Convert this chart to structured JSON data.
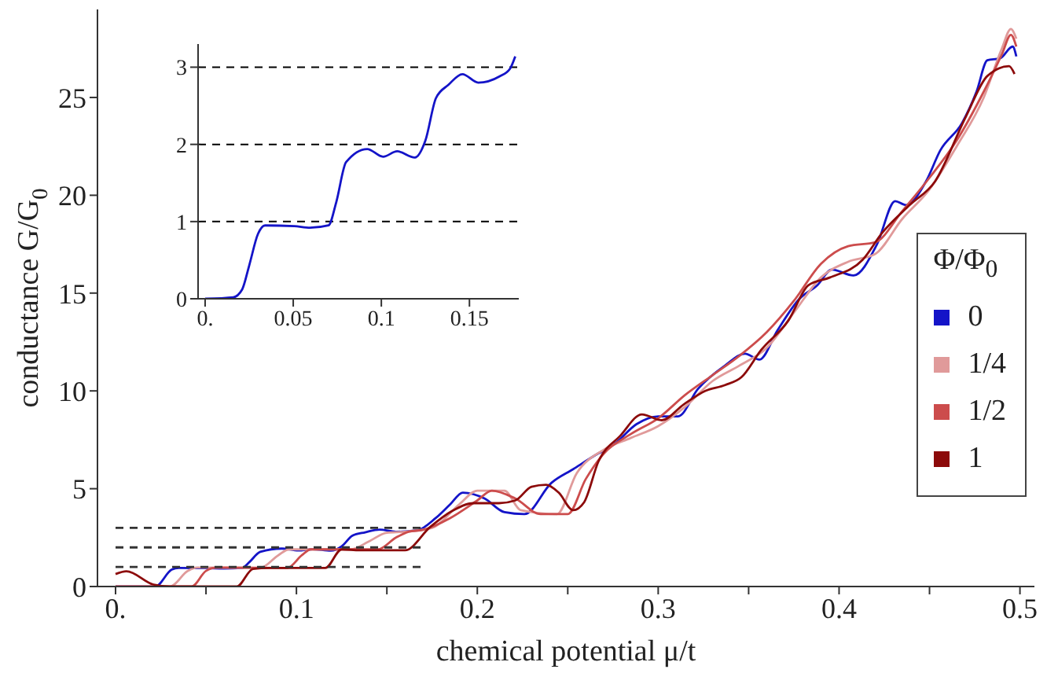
{
  "chart_data": [
    {
      "type": "line",
      "xlabel": "chemical potential  μ/t",
      "ylabel": "conductance  G/G$_{0}$",
      "legend_title": "Φ/Φ$_{0}$",
      "legend": "right",
      "xlim": [
        -0.01,
        0.508
      ],
      "ylim": [
        0,
        29.5
      ],
      "xticks": [
        {
          "value": 0,
          "label": "0."
        },
        {
          "value": 0.05,
          "label": null
        },
        0.1,
        {
          "value": 0.15,
          "label": null
        },
        0.2,
        {
          "value": 0.25,
          "label": null
        },
        0.3,
        {
          "value": 0.35,
          "label": null
        },
        0.4,
        {
          "value": 0.45,
          "label": null
        },
        0.5
      ],
      "yticks": [
        0,
        5,
        10,
        15,
        20,
        25
      ],
      "series": [
        {
          "name": "0",
          "color": "#1414c8",
          "x": [
            0,
            0.022,
            0.031,
            0.035,
            0.05,
            0.06,
            0.07,
            0.074,
            0.08,
            0.092,
            0.101,
            0.109,
            0.119,
            0.125,
            0.131,
            0.138,
            0.146,
            0.155,
            0.167,
            0.177,
            0.185,
            0.192,
            0.204,
            0.215,
            0.226,
            0.241,
            0.253,
            0.265,
            0.276,
            0.288,
            0.3,
            0.311,
            0.322,
            0.337,
            0.348,
            0.356,
            0.366,
            0.378,
            0.388,
            0.396,
            0.408,
            0.421,
            0.431,
            0.437,
            0.448,
            0.456,
            0.468,
            0.476,
            0.482,
            0.489,
            0.496,
            0.498
          ],
          "values": [
            0,
            0,
            0.86,
            0.95,
            0.94,
            0.92,
            0.95,
            1.25,
            1.77,
            1.94,
            1.84,
            1.91,
            1.83,
            2.05,
            2.6,
            2.77,
            2.91,
            2.8,
            2.88,
            3.5,
            4.2,
            4.8,
            4.5,
            3.8,
            3.7,
            5.3,
            6.0,
            6.7,
            7.3,
            8.3,
            8.7,
            8.7,
            10.1,
            11.3,
            11.9,
            11.6,
            13.1,
            14.7,
            15.4,
            16.2,
            15.9,
            17.5,
            19.7,
            19.5,
            20.7,
            22.3,
            23.7,
            25.3,
            26.9,
            27.0,
            27.6,
            27.1
          ]
        },
        {
          "name": "1/4",
          "color": "#e09a9a",
          "x": [
            0,
            0.03,
            0.04,
            0.045,
            0.08,
            0.09,
            0.096,
            0.13,
            0.14,
            0.15,
            0.16,
            0.175,
            0.19,
            0.2,
            0.215,
            0.224,
            0.244,
            0.255,
            0.27,
            0.285,
            0.3,
            0.315,
            0.33,
            0.345,
            0.36,
            0.375,
            0.39,
            0.405,
            0.42,
            0.435,
            0.45,
            0.465,
            0.48,
            0.49,
            0.495,
            0.498
          ],
          "values": [
            0,
            0,
            0.8,
            0.97,
            0.95,
            1.6,
            1.9,
            1.9,
            2.3,
            2.75,
            2.8,
            3.0,
            4.2,
            4.9,
            4.9,
            3.9,
            3.7,
            5.8,
            7.0,
            7.6,
            8.2,
            9.2,
            10.5,
            11.3,
            12.2,
            14.0,
            15.8,
            16.6,
            17.0,
            18.8,
            20.3,
            22.5,
            25.0,
            27.5,
            28.5,
            28.0
          ]
        },
        {
          "name": "1/2",
          "color": "#cc4c4c",
          "x": [
            0,
            0.042,
            0.05,
            0.056,
            0.095,
            0.103,
            0.108,
            0.145,
            0.155,
            0.162,
            0.17,
            0.185,
            0.2,
            0.208,
            0.221,
            0.235,
            0.25,
            0.26,
            0.27,
            0.285,
            0.3,
            0.315,
            0.33,
            0.345,
            0.36,
            0.375,
            0.39,
            0.405,
            0.42,
            0.435,
            0.45,
            0.465,
            0.48,
            0.49,
            0.495,
            0.498
          ],
          "values": [
            0,
            0,
            0.8,
            0.97,
            0.95,
            1.6,
            1.9,
            1.9,
            2.5,
            2.8,
            2.9,
            3.5,
            4.4,
            4.9,
            4.5,
            3.7,
            3.7,
            5.5,
            6.8,
            7.8,
            8.6,
            9.8,
            10.8,
            11.8,
            13.0,
            14.6,
            16.5,
            17.4,
            17.6,
            19.2,
            20.9,
            22.8,
            25.3,
            27.2,
            28.2,
            27.6
          ]
        },
        {
          "name": "1",
          "color": "#8c0a0a",
          "x": [
            0,
            0.006,
            0.021,
            0.03,
            0.067,
            0.076,
            0.085,
            0.116,
            0.125,
            0.135,
            0.16,
            0.174,
            0.186,
            0.198,
            0.212,
            0.221,
            0.23,
            0.238,
            0.245,
            0.253,
            0.259,
            0.267,
            0.279,
            0.291,
            0.302,
            0.314,
            0.326,
            0.337,
            0.346,
            0.357,
            0.372,
            0.383,
            0.395,
            0.413,
            0.424,
            0.439,
            0.453,
            0.47,
            0.482,
            0.494,
            0.497
          ],
          "values": [
            0.64,
            0.78,
            0.1,
            0,
            0,
            0.9,
            0.95,
            0.95,
            1.9,
            1.85,
            1.85,
            3.05,
            3.86,
            4.26,
            4.26,
            4.4,
            5.1,
            5.2,
            4.8,
            3.9,
            4.3,
            6.4,
            7.7,
            8.8,
            8.5,
            9.3,
            10.0,
            10.3,
            10.7,
            12.1,
            13.6,
            15.4,
            15.8,
            16.7,
            18.1,
            19.5,
            20.7,
            24.0,
            26.1,
            26.6,
            26.2
          ]
        },
        {
          "color": "#333333",
          "line_style": "dashed",
          "x": [
            0,
            0.17
          ],
          "values": [
            1,
            1
          ]
        },
        {
          "color": "#333333",
          "line_style": "dashed",
          "x": [
            0,
            0.17
          ],
          "values": [
            2,
            2
          ]
        },
        {
          "color": "#333333",
          "line_style": "dashed",
          "x": [
            0,
            0.17
          ],
          "values": [
            3,
            3
          ]
        }
      ]
    },
    {
      "type": "line",
      "xlim": [
        -0.004,
        0.178
      ],
      "ylim": [
        0,
        3.3
      ],
      "xticks": [
        {
          "value": 0,
          "label": "0."
        },
        0.05,
        0.1,
        0.15
      ],
      "yticks": [
        0,
        1,
        2,
        3
      ],
      "ref_lines": [
        {
          "axis": "y",
          "value": 1,
          "color": "#000000",
          "line_style": "dashed"
        },
        {
          "axis": "y",
          "value": 2,
          "color": "#000000",
          "line_style": "dashed"
        },
        {
          "axis": "y",
          "value": 3,
          "color": "#000000",
          "line_style": "dashed"
        }
      ],
      "series": [
        {
          "color": "#1414c8",
          "x": [
            0,
            0.016,
            0.021,
            0.025,
            0.03,
            0.034,
            0.0506,
            0.0595,
            0.07,
            0.0744,
            0.08,
            0.092,
            0.101,
            0.109,
            0.119,
            0.125,
            0.131,
            0.138,
            0.146,
            0.155,
            0.167,
            0.173,
            0.176
          ],
          "values": [
            0,
            0.02,
            0.12,
            0.43,
            0.84,
            0.95,
            0.94,
            0.92,
            0.95,
            1.25,
            1.77,
            1.94,
            1.84,
            1.91,
            1.83,
            2.05,
            2.6,
            2.77,
            2.91,
            2.8,
            2.88,
            2.98,
            3.14
          ]
        }
      ]
    }
  ]
}
